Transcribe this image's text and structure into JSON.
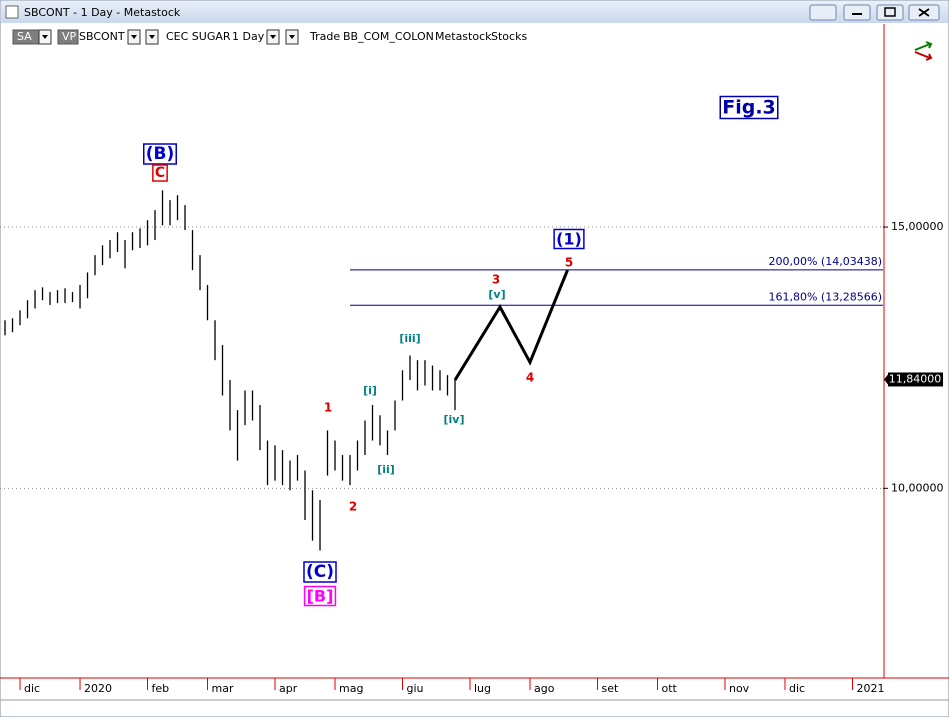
{
  "window": {
    "title": "SBCONT - 1 Day - Metastock"
  },
  "toolbar": {
    "items": [
      "SA",
      "VP",
      "SBCONT",
      "CEC SUGAR",
      "1 Day",
      "Trade",
      "BB_COM_COLON",
      "Metastock",
      "Stocks"
    ]
  },
  "chart_data": {
    "type": "ohlc",
    "log_scale": true,
    "grid": true,
    "color": "#000000",
    "ylim": [
      7.45,
      20.62
    ],
    "yticks": [
      {
        "value": 15,
        "label": "15,00000"
      },
      {
        "value": 10,
        "label": "10,00000"
      }
    ],
    "last_price": {
      "value": 11.84,
      "label": "11,84000"
    },
    "xlim": [
      -0.67,
      117.07
    ],
    "xticks": [
      {
        "value": 2,
        "label": "dic"
      },
      {
        "value": 10,
        "label": "2020"
      },
      {
        "value": 19,
        "label": "feb"
      },
      {
        "value": 27,
        "label": "mar"
      },
      {
        "value": 36,
        "label": "apr"
      },
      {
        "value": 44,
        "label": "mag"
      },
      {
        "value": 53,
        "label": "giu"
      },
      {
        "value": 62,
        "label": "lug"
      },
      {
        "value": 70,
        "label": "ago"
      },
      {
        "value": 79,
        "label": "set"
      },
      {
        "value": 87,
        "label": "ott"
      },
      {
        "value": 96,
        "label": "nov"
      },
      {
        "value": 104,
        "label": "dic"
      },
      {
        "value": 113,
        "label": "2021"
      }
    ],
    "high": [
      12.98,
      13.02,
      13.18,
      13.39,
      13.6,
      13.66,
      13.56,
      13.6,
      13.64,
      13.56,
      13.71,
      13.98,
      14.36,
      14.58,
      14.7,
      14.88,
      14.7,
      14.88,
      14.97,
      15.16,
      15.4,
      15.88,
      15.64,
      15.76,
      15.52,
      14.93,
      14.36,
      13.71,
      12.98,
      12.49,
      11.83,
      11.29,
      11.64,
      11.64,
      11.38,
      10.77,
      10.69,
      10.61,
      10.44,
      10.53,
      10.28,
      9.97,
      9.82,
      10.94,
      10.77,
      10.53,
      10.53,
      10.77,
      11.11,
      11.38,
      11.2,
      10.94,
      11.46,
      12.01,
      12.29,
      12.2,
      12.2,
      12.1,
      12.01,
      11.92,
      11.83
    ],
    "low": [
      12.68,
      12.74,
      12.88,
      13.02,
      13.22,
      13.39,
      13.29,
      13.33,
      13.33,
      13.35,
      13.22,
      13.43,
      13.92,
      14.14,
      14.29,
      14.43,
      14.07,
      14.47,
      14.52,
      14.58,
      14.7,
      15.04,
      15.04,
      15.16,
      14.93,
      14.03,
      13.6,
      12.98,
      12.2,
      11.55,
      10.94,
      10.44,
      11.03,
      11.11,
      10.61,
      10.05,
      10.12,
      10.05,
      9.97,
      10.12,
      9.52,
      9.22,
      9.08,
      10.2,
      10.28,
      10.12,
      10.05,
      10.28,
      10.53,
      10.77,
      10.69,
      10.53,
      10.94,
      11.46,
      11.83,
      11.64,
      11.73,
      11.64,
      11.64,
      11.55,
      11.29
    ],
    "projection": {
      "color": "#000000",
      "x": [
        60,
        66,
        70,
        75
      ],
      "values": [
        11.83,
        13.25,
        12.16,
        14.03
      ]
    },
    "fib_levels": [
      {
        "value": 14.03438,
        "label": "200,00% (14,03438)"
      },
      {
        "value": 13.28566,
        "label": "161,80% (13,28566)"
      }
    ],
    "fib_color": "#00008b",
    "annotations": [
      {
        "text": "(B)",
        "color": "#0000cc",
        "boxed": true
      },
      {
        "text": "C",
        "color": "#e00000",
        "boxed": true
      },
      {
        "text": "(C)",
        "color": "#0000cc",
        "boxed": true
      },
      {
        "text": "[B]",
        "color": "#ff00ff",
        "boxed": true
      },
      {
        "text": "1",
        "color": "#e00000",
        "boxed": false
      },
      {
        "text": "2",
        "color": "#e00000",
        "boxed": false
      },
      {
        "text": "3",
        "color": "#e00000",
        "boxed": false
      },
      {
        "text": "4",
        "color": "#e00000",
        "boxed": false
      },
      {
        "text": "5",
        "color": "#e00000",
        "boxed": false
      },
      {
        "text": "[i]",
        "color": "#008080",
        "boxed": false
      },
      {
        "text": "[ii]",
        "color": "#008080",
        "boxed": false
      },
      {
        "text": "[iii]",
        "color": "#008080",
        "boxed": false
      },
      {
        "text": "[iv]",
        "color": "#008080",
        "boxed": false
      },
      {
        "text": "[v]",
        "color": "#008080",
        "boxed": false
      },
      {
        "text": "(1)",
        "color": "#0000cc",
        "boxed": true
      },
      {
        "text": "Fig.3",
        "color": "#0000aa",
        "boxed": true
      }
    ]
  }
}
